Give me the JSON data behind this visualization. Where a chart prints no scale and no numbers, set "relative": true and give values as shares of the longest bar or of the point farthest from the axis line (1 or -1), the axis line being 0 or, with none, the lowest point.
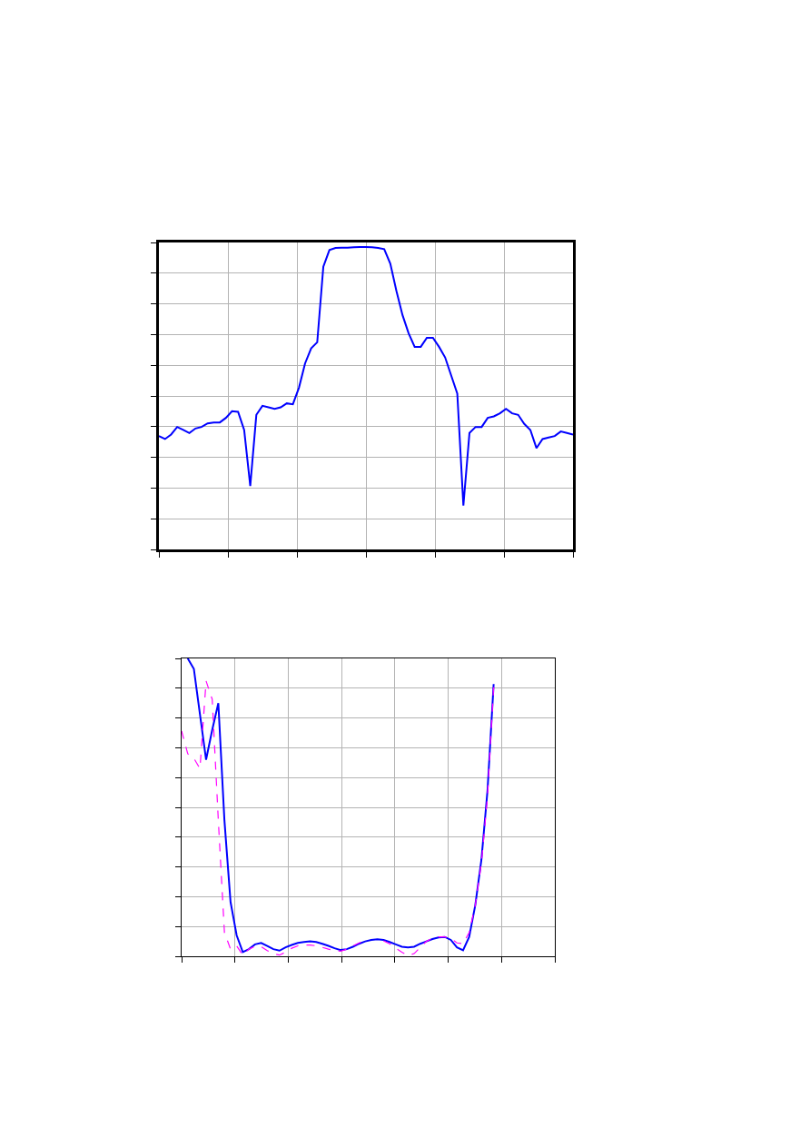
{
  "chart_data": [
    {
      "type": "line",
      "relative": true,
      "grid": true,
      "legend": false,
      "marker": "none",
      "categories": [
        null,
        null,
        null,
        null,
        null,
        null,
        null,
        null,
        null,
        null,
        null,
        null,
        null,
        null,
        null,
        null,
        null,
        null,
        null,
        null,
        null,
        null,
        null,
        null,
        null,
        null,
        null,
        null,
        null,
        null,
        null,
        null,
        null,
        null,
        null,
        null,
        null,
        null,
        null,
        null,
        null,
        null,
        null,
        null,
        null,
        null,
        null,
        null,
        null,
        null,
        null,
        null,
        null,
        null,
        null,
        null,
        null,
        null,
        null,
        null,
        null,
        null,
        null,
        null,
        null,
        null,
        null,
        null,
        null
      ],
      "series": [
        {
          "color": "#0000ff",
          "line_style": "solid",
          "values": [
            0.375,
            0.365,
            0.38,
            0.405,
            0.395,
            0.385,
            0.4,
            0.405,
            0.417,
            0.42,
            0.42,
            0.435,
            0.457,
            0.455,
            0.395,
            0.21,
            0.445,
            0.475,
            0.47,
            0.465,
            0.47,
            0.483,
            0.48,
            0.535,
            0.615,
            0.665,
            0.685,
            0.935,
            0.99,
            0.997,
            0.998,
            0.998,
            0.999,
            1,
            1,
            0.999,
            0.997,
            0.993,
            0.945,
            0.855,
            0.775,
            0.715,
            0.67,
            0.67,
            0.7,
            0.7,
            0.67,
            0.635,
            0.575,
            0.515,
            0.145,
            0.385,
            0.405,
            0.405,
            0.435,
            0.44,
            0.45,
            0.465,
            0.45,
            0.445,
            0.415,
            0.395,
            0.335,
            0.365,
            0.37,
            0.375,
            0.39,
            0.385,
            0.38
          ]
        }
      ]
    },
    {
      "type": "line",
      "relative": true,
      "grid": true,
      "legend": false,
      "marker": "none",
      "categories": [
        null,
        null,
        null,
        null,
        null,
        null,
        null,
        null,
        null,
        null,
        null,
        null,
        null,
        null,
        null,
        null,
        null,
        null,
        null,
        null,
        null,
        null,
        null,
        null,
        null,
        null,
        null,
        null,
        null,
        null,
        null,
        null,
        null,
        null,
        null,
        null,
        null,
        null,
        null,
        null,
        null,
        null,
        null,
        null,
        null,
        null,
        null,
        null,
        null,
        null,
        null,
        null,
        null,
        null,
        null,
        null,
        null,
        null,
        null,
        null,
        null,
        null
      ],
      "series": [
        {
          "color": "#0000ff",
          "line_style": "solid",
          "values": [
            null,
            1,
            0.965,
            0.812,
            0.66,
            0.76,
            0.85,
            0.456,
            0.182,
            0.07,
            0.014,
            0.024,
            0.04,
            0.045,
            0.035,
            0.024,
            0.019,
            0.03,
            0.038,
            0.045,
            0.048,
            0.05,
            0.048,
            0.042,
            0.035,
            0.027,
            0.021,
            0.024,
            0.032,
            0.042,
            0.05,
            0.055,
            0.057,
            0.055,
            0.048,
            0.04,
            0.032,
            0.03,
            0.032,
            0.042,
            0.05,
            0.058,
            0.063,
            0.065,
            0.055,
            0.03,
            0.02,
            0.065,
            0.172,
            0.324,
            0.558,
            0.914,
            null,
            null,
            null,
            null,
            null,
            null,
            null,
            null,
            null,
            null
          ]
        },
        {
          "color": "#ff00ff",
          "line_style": "dashed",
          "values": [
            0.756,
            0.68,
            0.665,
            0.63,
            0.924,
            0.863,
            0.456,
            0.08,
            0.024,
            0.035,
            0.004,
            0.024,
            0.033,
            0.032,
            0.019,
            0.009,
            0.004,
            0.014,
            0.027,
            0.035,
            0.038,
            0.038,
            0.035,
            0.03,
            0.024,
            0.019,
            0.017,
            0.024,
            0.035,
            0.045,
            0.052,
            null,
            null,
            0.052,
            0.042,
            0.027,
            0.014,
            0.002,
            0.009,
            0.03,
            0.05,
            0.06,
            0.065,
            0.065,
            0.06,
            0.045,
            0.042,
            0.08,
            0.172,
            0.313,
            0.537,
            0.904,
            null,
            null,
            null,
            null,
            null,
            null,
            null,
            null,
            null,
            null
          ]
        }
      ]
    }
  ]
}
